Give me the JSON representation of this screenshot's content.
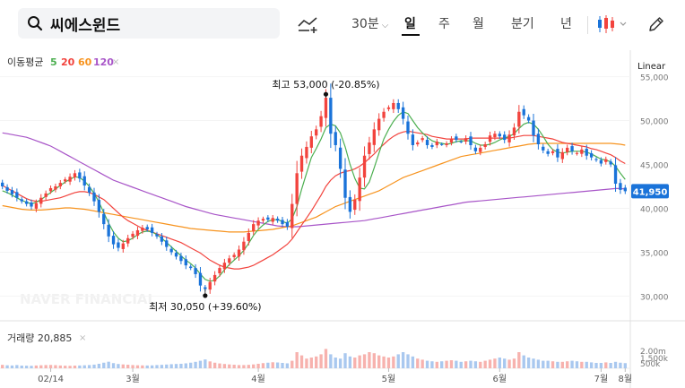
{
  "search": {
    "query": "씨에스윈드"
  },
  "toolbar": {
    "interval": "30분",
    "periods": [
      "일",
      "주",
      "월",
      "분기",
      "년"
    ],
    "active_period": "일"
  },
  "indicators": {
    "ma_label": "이동평균",
    "ma_periods": [
      {
        "value": "5",
        "color": "#4caf50"
      },
      {
        "value": "20",
        "color": "#f2433d"
      },
      {
        "value": "60",
        "color": "#f7931e"
      },
      {
        "value": "120",
        "color": "#a855c8"
      }
    ],
    "scale": "Linear",
    "volume_label": "거래량 20,885"
  },
  "watermark": "NAVER FINANCIAL",
  "colors": {
    "up": "#f2433d",
    "down": "#1a73d9",
    "last_price_bg": "#1a73d9"
  },
  "chart_data": {
    "type": "candlestick",
    "title": "씨에스윈드",
    "y_ticks": [
      "55,000",
      "50,000",
      "45,000",
      "40,000",
      "35,000",
      "30,000"
    ],
    "ylim": [
      28000,
      57000
    ],
    "x_labels": [
      "02/14",
      "3월",
      "4월",
      "5월",
      "6월",
      "7월",
      "8월"
    ],
    "last_price": 41950,
    "last_price_label": "41,950",
    "high_annotation": "최고 53,000 (-20.85%)",
    "low_annotation": "최저 30,050 (+39.60%)",
    "high": 53000,
    "low": 30050,
    "close": [
      42500,
      42000,
      41600,
      41200,
      40800,
      40500,
      40200,
      40600,
      41200,
      41700,
      42300,
      42500,
      42900,
      43300,
      43600,
      44000,
      43400,
      42600,
      41800,
      40800,
      39600,
      38200,
      36800,
      35900,
      35500,
      36000,
      36600,
      37100,
      37500,
      37800,
      37600,
      37200,
      36800,
      36200,
      35600,
      35000,
      34500,
      34000,
      33500,
      33200,
      32500,
      31200,
      30800,
      31600,
      32400,
      33200,
      33800,
      34300,
      34700,
      35300,
      36200,
      37200,
      38200,
      38600,
      38800,
      38700,
      38900,
      38600,
      38200,
      37900,
      40500,
      44000,
      46000,
      47000,
      48200,
      49000,
      50500,
      52600,
      48500,
      47200,
      44500,
      41200,
      39600,
      41000,
      43500,
      46000,
      47500,
      49000,
      50200,
      51000,
      51500,
      52000,
      51300,
      50200,
      48500,
      47200,
      47500,
      48000,
      47200,
      47000,
      47600,
      47300,
      47400,
      47900,
      47800,
      47600,
      48000,
      47200,
      46500,
      46900,
      47300,
      48300,
      48500,
      48200,
      47800,
      48400,
      49200,
      51000,
      50600,
      50000,
      48300,
      47300,
      46600,
      46200,
      46500,
      45800,
      46400,
      46900,
      46500,
      46300,
      46700,
      46000,
      45800,
      45500,
      45100,
      45600,
      45000,
      42800,
      42100,
      41950
    ],
    "ma5": [
      42000,
      41800,
      41500,
      41200,
      40900,
      40700,
      40500,
      40700,
      41000,
      41400,
      41800,
      42200,
      42600,
      43000,
      43300,
      43600,
      43500,
      43100,
      42500,
      41700,
      40700,
      39500,
      38300,
      37300,
      36600,
      36200,
      36300,
      36600,
      37000,
      37300,
      37400,
      37300,
      37000,
      36600,
      36100,
      35600,
      35100,
      34600,
      34100,
      33700,
      33200,
      32500,
      31900,
      31700,
      31800,
      32300,
      33000,
      33600,
      34100,
      34600,
      35200,
      36000,
      36900,
      37600,
      38100,
      38500,
      38700,
      38700,
      38500,
      38300,
      38800,
      40200,
      42200,
      44000,
      45800,
      46800,
      47900,
      49200,
      49600,
      49400,
      48600,
      47000,
      45000,
      43400,
      42300,
      42200,
      43000,
      44600,
      46300,
      47900,
      49000,
      49900,
      50600,
      51000,
      50800,
      50000,
      49200,
      48600,
      48100,
      47700,
      47500,
      47400,
      47300,
      47400,
      47600,
      47700,
      47700,
      47700,
      47400,
      47200,
      47200,
      47300,
      47500,
      47800,
      48000,
      48200,
      48500,
      49100,
      49600,
      49800,
      49600,
      49000,
      48200,
      47300,
      46700,
      46400,
      46300,
      46400,
      46500,
      46500,
      46500,
      46400,
      46200,
      45900,
      45600,
      45500,
      45300,
      44800,
      44000,
      43300
    ],
    "ma20": [
      42600,
      42300,
      42000,
      41700,
      41400,
      41100,
      40900,
      40800,
      40800,
      40900,
      41000,
      41100,
      41200,
      41400,
      41600,
      41800,
      41900,
      41900,
      41800,
      41600,
      41300,
      41000,
      40500,
      40000,
      39500,
      39000,
      38600,
      38300,
      38000,
      37700,
      37500,
      37300,
      37100,
      36900,
      36700,
      36500,
      36300,
      36100,
      35800,
      35500,
      35200,
      34900,
      34500,
      34100,
      33800,
      33500,
      33300,
      33200,
      33100,
      33100,
      33200,
      33300,
      33500,
      33800,
      34100,
      34400,
      34700,
      35100,
      35500,
      35900,
      36500,
      37300,
      38100,
      38900,
      39700,
      40600,
      41500,
      42500,
      43200,
      43700,
      44000,
      44200,
      44300,
      44500,
      44800,
      45200,
      45700,
      46200,
      46800,
      47300,
      47800,
      48200,
      48500,
      48700,
      48800,
      48700,
      48600,
      48500,
      48400,
      48200,
      48100,
      48000,
      47900,
      47900,
      47900,
      47900,
      47900,
      48000,
      48000,
      48000,
      48000,
      48000,
      48000,
      48000,
      48000,
      48000,
      48100,
      48200,
      48300,
      48300,
      48300,
      48200,
      48100,
      48000,
      47900,
      47700,
      47500,
      47400,
      47300,
      47200,
      47100,
      47000,
      46800,
      46700,
      46500,
      46300,
      46100,
      45800,
      45400,
      45100
    ],
    "ma60": [
      40300,
      40200,
      40100,
      40000,
      39900,
      39850,
      39800,
      39800,
      39800,
      39850,
      39900,
      39950,
      40000,
      40050,
      40050,
      40000,
      39950,
      39900,
      39800,
      39700,
      39600,
      39500,
      39400,
      39300,
      39200,
      39100,
      39000,
      38900,
      38800,
      38700,
      38600,
      38500,
      38400,
      38300,
      38200,
      38100,
      38000,
      37900,
      37800,
      37700,
      37650,
      37600,
      37550,
      37500,
      37450,
      37400,
      37350,
      37300,
      37300,
      37300,
      37300,
      37350,
      37400,
      37450,
      37500,
      37550,
      37600,
      37700,
      37800,
      37900,
      38000,
      38200,
      38400,
      38600,
      38800,
      39000,
      39300,
      39600,
      39900,
      40200,
      40400,
      40600,
      40800,
      41000,
      41200,
      41400,
      41600,
      41800,
      42000,
      42300,
      42600,
      42900,
      43200,
      43500,
      43700,
      43900,
      44100,
      44300,
      44500,
      44700,
      44900,
      45100,
      45300,
      45500,
      45700,
      45900,
      46000,
      46100,
      46200,
      46300,
      46400,
      46500,
      46600,
      46700,
      46800,
      46900,
      47000,
      47100,
      47200,
      47300,
      47350,
      47400,
      47400,
      47400,
      47400,
      47400,
      47400,
      47400,
      47400,
      47400,
      47400,
      47400,
      47400,
      47400,
      47400,
      47400,
      47400,
      47350,
      47300,
      47200
    ],
    "ma120": [
      48600,
      48500,
      48400,
      48300,
      48200,
      48100,
      47900,
      47700,
      47500,
      47300,
      47100,
      46800,
      46500,
      46200,
      45900,
      45600,
      45300,
      45000,
      44700,
      44400,
      44100,
      43800,
      43500,
      43200,
      43000,
      42800,
      42600,
      42400,
      42200,
      42000,
      41800,
      41600,
      41400,
      41200,
      41000,
      40800,
      40600,
      40400,
      40200,
      40050,
      39900,
      39750,
      39600,
      39450,
      39300,
      39200,
      39100,
      39000,
      38900,
      38800,
      38700,
      38600,
      38500,
      38400,
      38300,
      38200,
      38100,
      38000,
      37950,
      37900,
      37900,
      37900,
      37950,
      38000,
      38050,
      38100,
      38150,
      38200,
      38250,
      38300,
      38350,
      38400,
      38450,
      38500,
      38550,
      38600,
      38700,
      38800,
      38900,
      39000,
      39100,
      39200,
      39300,
      39400,
      39500,
      39600,
      39700,
      39800,
      39900,
      40000,
      40100,
      40200,
      40300,
      40400,
      40500,
      40600,
      40700,
      40750,
      40800,
      40850,
      40900,
      40950,
      41000,
      41050,
      41100,
      41150,
      41200,
      41250,
      41300,
      41350,
      41400,
      41450,
      41500,
      41550,
      41600,
      41650,
      41700,
      41750,
      41800,
      41850,
      41900,
      41950,
      42000,
      42050,
      42100,
      42150,
      42200,
      42250,
      42250,
      42200
    ],
    "volume": [
      320,
      280,
      260,
      300,
      250,
      240,
      230,
      260,
      280,
      300,
      310,
      290,
      260,
      240,
      230,
      250,
      260,
      280,
      300,
      340,
      420,
      520,
      610,
      480,
      400,
      360,
      330,
      300,
      280,
      270,
      260,
      270,
      300,
      320,
      350,
      380,
      400,
      420,
      460,
      520,
      600,
      700,
      820,
      640,
      520,
      450,
      400,
      360,
      330,
      300,
      300,
      320,
      360,
      420,
      480,
      520,
      560,
      540,
      500,
      460,
      700,
      1500,
      1200,
      900,
      1000,
      1100,
      1300,
      1800,
      1300,
      1000,
      900,
      1400,
      1100,
      1000,
      1200,
      1300,
      1500,
      1400,
      1200,
      1100,
      1000,
      1100,
      1300,
      1500,
      1300,
      1100,
      900,
      800,
      700,
      650,
      600,
      650,
      700,
      750,
      700,
      600,
      650,
      700,
      650,
      600,
      700,
      800,
      900,
      1000,
      900,
      800,
      900,
      1500,
      1200,
      1000,
      900,
      800,
      700,
      700,
      650,
      600,
      600,
      650,
      700,
      650,
      600,
      600,
      550,
      500,
      500,
      550,
      500,
      600,
      520,
      480
    ]
  }
}
